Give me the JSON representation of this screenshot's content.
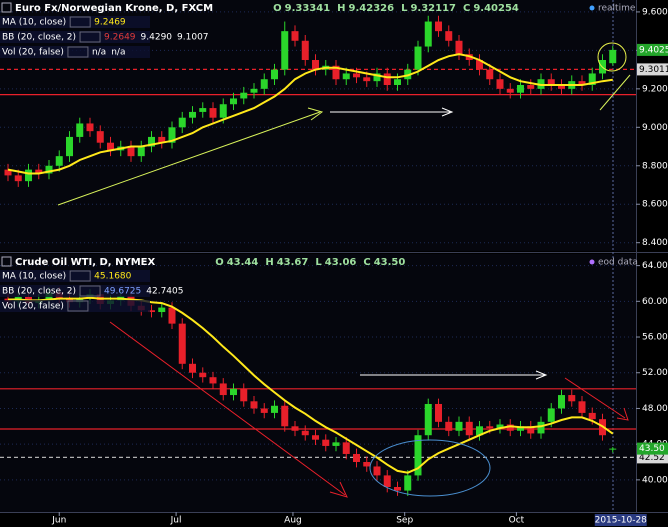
{
  "chart_data": [
    {
      "type": "candlestick",
      "title": "Euro Fx/Norwegian Krone, D, FXCM",
      "status": "realtime",
      "ohlc_letters": [
        "O",
        "H",
        "L",
        "C"
      ],
      "header_values": [
        "9.33341",
        "9.42326",
        "9.32117",
        "9.40254"
      ],
      "legend": [
        {
          "name": "MA (10, close)",
          "values": [
            "9.2469"
          ],
          "color": "#ffe81a"
        },
        {
          "name": "BB (20, close, 2)",
          "values": [
            "9.2649",
            "9.4290",
            "9.1007"
          ],
          "color": "#e03a3a"
        },
        {
          "name": "Vol (20, false)",
          "values": [
            "n/a",
            "n/a"
          ],
          "color": "#ffffff"
        }
      ],
      "ylim": [
        8.362,
        9.662
      ],
      "yticks": [
        {
          "value": 9.6,
          "label": "9.6000"
        },
        {
          "value": 9.4,
          "label": "9.4000"
        },
        {
          "value": 9.2,
          "label": "9.2000"
        },
        {
          "value": 9.0,
          "label": "9.0000"
        },
        {
          "value": 8.8,
          "label": "8.8000"
        },
        {
          "value": 8.6,
          "label": "8.6000"
        },
        {
          "value": 8.4,
          "label": "8.4000"
        }
      ],
      "up_color": "#2bd62b",
      "down_color": "#e8202a",
      "ma_color": "#ffe81a",
      "hlines": [
        {
          "value": 9.3011,
          "label": "9.3011",
          "dashed": true
        },
        {
          "value": 9.17,
          "dashed": false
        }
      ],
      "open": [
        8.78,
        8.75,
        8.72,
        8.78,
        8.76,
        8.8,
        8.85,
        8.95,
        9.02,
        8.98,
        8.92,
        8.88,
        8.9,
        8.85,
        8.9,
        8.95,
        8.92,
        9.0,
        9.05,
        9.08,
        9.1,
        9.05,
        9.12,
        9.15,
        9.18,
        9.2,
        9.25,
        9.3,
        9.5,
        9.45,
        9.35,
        9.3,
        9.32,
        9.25,
        9.28,
        9.26,
        9.24,
        9.28,
        9.22,
        9.25,
        9.3,
        9.42,
        9.55,
        9.5,
        9.45,
        9.38,
        9.35,
        9.3,
        9.25,
        9.2,
        9.18,
        9.22,
        9.2,
        9.25,
        9.22,
        9.2,
        9.24,
        9.22,
        9.28,
        9.33341
      ],
      "high": [
        8.81,
        8.78,
        8.81,
        8.81,
        8.83,
        8.88,
        8.98,
        9.05,
        9.05,
        9.01,
        8.95,
        8.93,
        8.93,
        8.93,
        8.98,
        8.98,
        9.03,
        9.08,
        9.11,
        9.13,
        9.13,
        9.15,
        9.18,
        9.21,
        9.23,
        9.28,
        9.33,
        9.55,
        9.53,
        9.48,
        9.38,
        9.35,
        9.35,
        9.31,
        9.31,
        9.29,
        9.31,
        9.31,
        9.28,
        9.33,
        9.45,
        9.58,
        9.58,
        9.53,
        9.48,
        9.41,
        9.38,
        9.33,
        9.28,
        9.23,
        9.25,
        9.25,
        9.28,
        9.28,
        9.25,
        9.27,
        9.27,
        9.31,
        9.38,
        9.42326
      ],
      "low": [
        8.72,
        8.69,
        8.69,
        8.73,
        8.73,
        8.77,
        8.82,
        8.92,
        8.95,
        8.89,
        8.85,
        8.85,
        8.82,
        8.82,
        8.87,
        8.89,
        8.89,
        8.97,
        9.02,
        9.05,
        9.02,
        9.02,
        9.09,
        9.12,
        9.15,
        9.17,
        9.22,
        9.27,
        9.42,
        9.32,
        9.27,
        9.27,
        9.22,
        9.22,
        9.23,
        9.21,
        9.21,
        9.19,
        9.19,
        9.22,
        9.27,
        9.39,
        9.47,
        9.42,
        9.35,
        9.32,
        9.27,
        9.22,
        9.17,
        9.15,
        9.15,
        9.17,
        9.17,
        9.19,
        9.17,
        9.17,
        9.19,
        9.19,
        9.25,
        9.32117
      ],
      "close": [
        8.75,
        8.72,
        8.78,
        8.76,
        8.8,
        8.85,
        8.95,
        9.02,
        8.98,
        8.92,
        8.88,
        8.9,
        8.85,
        8.9,
        8.95,
        8.92,
        9.0,
        9.05,
        9.08,
        9.1,
        9.05,
        9.12,
        9.15,
        9.18,
        9.2,
        9.25,
        9.3,
        9.5,
        9.45,
        9.35,
        9.3,
        9.32,
        9.25,
        9.28,
        9.26,
        9.24,
        9.28,
        9.22,
        9.25,
        9.3,
        9.42,
        9.55,
        9.5,
        9.45,
        9.38,
        9.35,
        9.3,
        9.25,
        9.2,
        9.18,
        9.22,
        9.2,
        9.25,
        9.22,
        9.2,
        9.24,
        9.22,
        9.28,
        9.35,
        9.40254
      ],
      "ma": [
        8.78,
        8.77,
        8.76,
        8.76,
        8.77,
        8.78,
        8.8,
        8.83,
        8.85,
        8.87,
        8.88,
        8.89,
        8.9,
        8.9,
        8.91,
        8.92,
        8.93,
        8.95,
        8.97,
        9.0,
        9.02,
        9.04,
        9.06,
        9.08,
        9.1,
        9.13,
        9.16,
        9.2,
        9.25,
        9.28,
        9.3,
        9.31,
        9.31,
        9.3,
        9.29,
        9.28,
        9.27,
        9.26,
        9.26,
        9.27,
        9.29,
        9.32,
        9.35,
        9.37,
        9.38,
        9.37,
        9.35,
        9.32,
        9.29,
        9.26,
        9.24,
        9.23,
        9.22,
        9.22,
        9.22,
        9.22,
        9.22,
        9.23,
        9.24,
        9.2469
      ]
    },
    {
      "type": "candlestick",
      "title": "Crude Oil WTI, D, NYMEX",
      "status": "eod data",
      "ohlc_letters": [
        "O",
        "H",
        "L",
        "C"
      ],
      "header_values": [
        "43.44",
        "43.67",
        "43.06",
        "43.50"
      ],
      "legend": [
        {
          "name": "MA (10, close)",
          "values": [
            "45.1680"
          ],
          "color": "#ffe81a"
        },
        {
          "name": "BB (20, close, 2)",
          "values": [
            "49.6725",
            "42.7405"
          ],
          "color": "#7da0ff"
        },
        {
          "name": "Vol (20, false)",
          "values": [],
          "color": "#ffffff"
        }
      ],
      "ylim": [
        36.4,
        65.3
      ],
      "yticks": [
        {
          "value": 64,
          "label": "64.00"
        },
        {
          "value": 60,
          "label": "60.00"
        },
        {
          "value": 56,
          "label": "56.00"
        },
        {
          "value": 52,
          "label": "52.00"
        },
        {
          "value": 48,
          "label": "48.00"
        },
        {
          "value": 44,
          "label": "44.00"
        },
        {
          "value": 40,
          "label": "40.00"
        }
      ],
      "up_color": "#2bd62b",
      "down_color": "#e8202a",
      "ma_color": "#ffe81a",
      "hlines": [
        {
          "value": 50.2,
          "dashed": false
        },
        {
          "value": 45.7,
          "dashed": false
        },
        {
          "value": 42.52,
          "label": "42.52",
          "dashed": true
        }
      ],
      "open": [
        60.3,
        60.0,
        60.5,
        59.8,
        60.2,
        61.0,
        60.4,
        59.9,
        60.3,
        60.8,
        59.7,
        60.1,
        60.6,
        59.5,
        59.0,
        58.8,
        59.3,
        57.5,
        53.0,
        52.0,
        51.5,
        50.8,
        49.5,
        50.2,
        48.8,
        48.0,
        47.5,
        48.3,
        46.0,
        45.5,
        45.0,
        44.5,
        43.8,
        44.2,
        42.9,
        42.0,
        41.5,
        40.5,
        39.2,
        38.8,
        40.5,
        45.0,
        48.5,
        46.5,
        45.5,
        46.5,
        45.0,
        46.0,
        45.8,
        46.2,
        45.5,
        46.0,
        45.2,
        46.5,
        48.0,
        49.5,
        48.8,
        47.5,
        46.8,
        43.44
      ],
      "high": [
        60.9,
        61.1,
        61.1,
        60.8,
        61.6,
        61.6,
        61.0,
        60.9,
        61.4,
        61.4,
        60.7,
        61.2,
        61.2,
        60.1,
        59.6,
        59.9,
        59.9,
        58.1,
        53.6,
        52.6,
        52.1,
        51.4,
        50.8,
        50.8,
        49.4,
        48.6,
        48.9,
        48.9,
        46.6,
        46.1,
        45.6,
        45.1,
        44.8,
        44.8,
        43.5,
        42.6,
        42.1,
        41.1,
        39.8,
        41.1,
        45.6,
        49.1,
        49.1,
        47.1,
        47.1,
        47.1,
        46.6,
        46.6,
        46.8,
        46.8,
        46.6,
        46.6,
        47.1,
        48.6,
        50.1,
        50.1,
        49.4,
        48.1,
        47.4,
        43.67
      ],
      "low": [
        59.4,
        59.4,
        59.2,
        59.2,
        59.6,
        59.8,
        59.3,
        59.3,
        59.7,
        59.1,
        59.1,
        59.5,
        58.9,
        58.4,
        58.2,
        58.2,
        56.9,
        52.4,
        51.4,
        50.9,
        50.2,
        48.9,
        48.9,
        48.2,
        47.4,
        46.9,
        46.9,
        45.4,
        44.9,
        44.4,
        43.9,
        43.2,
        43.2,
        42.3,
        41.4,
        40.9,
        39.9,
        38.6,
        38.2,
        38.2,
        39.9,
        44.4,
        45.9,
        44.9,
        44.9,
        44.4,
        44.4,
        45.2,
        45.2,
        44.9,
        44.9,
        44.6,
        44.6,
        45.9,
        47.4,
        48.2,
        46.9,
        46.2,
        44.4,
        43.06
      ],
      "close": [
        60.0,
        60.5,
        59.8,
        60.2,
        61.0,
        60.4,
        59.9,
        60.3,
        60.8,
        59.7,
        60.1,
        60.6,
        59.5,
        59.0,
        58.8,
        59.3,
        57.5,
        53.0,
        52.0,
        51.5,
        50.8,
        49.5,
        50.2,
        48.8,
        48.0,
        47.5,
        48.3,
        46.0,
        45.5,
        45.0,
        44.5,
        43.8,
        44.2,
        42.9,
        42.0,
        41.5,
        40.5,
        39.2,
        38.8,
        40.5,
        45.0,
        48.5,
        46.5,
        45.5,
        46.5,
        45.0,
        46.0,
        45.8,
        46.2,
        45.5,
        46.0,
        45.2,
        46.5,
        48.0,
        49.5,
        48.8,
        47.5,
        46.8,
        45.0,
        43.5
      ],
      "ma": [
        60.2,
        60.2,
        60.1,
        60.1,
        60.2,
        60.3,
        60.3,
        60.3,
        60.4,
        60.3,
        60.3,
        60.3,
        60.2,
        60.1,
        59.9,
        59.8,
        59.4,
        58.7,
        57.9,
        57.0,
        56.0,
        54.9,
        53.9,
        52.8,
        51.7,
        50.7,
        49.8,
        48.9,
        48.1,
        47.4,
        46.6,
        45.9,
        45.3,
        44.6,
        43.9,
        43.2,
        42.5,
        41.7,
        41.0,
        40.8,
        41.3,
        42.3,
        43.0,
        43.5,
        44.0,
        44.5,
        45.0,
        45.5,
        45.8,
        46.0,
        45.9,
        45.9,
        46.0,
        46.3,
        46.7,
        47.0,
        47.0,
        46.6,
        46.0,
        45.168
      ],
      "xticks": [
        {
          "value": 5,
          "label": "Jun"
        },
        {
          "value": 16.4,
          "label": "Jul"
        },
        {
          "value": 27.8,
          "label": "Aug"
        },
        {
          "value": 38.7,
          "label": "Sep"
        },
        {
          "value": 49.6,
          "label": "Oct"
        }
      ],
      "current_date": "2015-10-28"
    }
  ]
}
